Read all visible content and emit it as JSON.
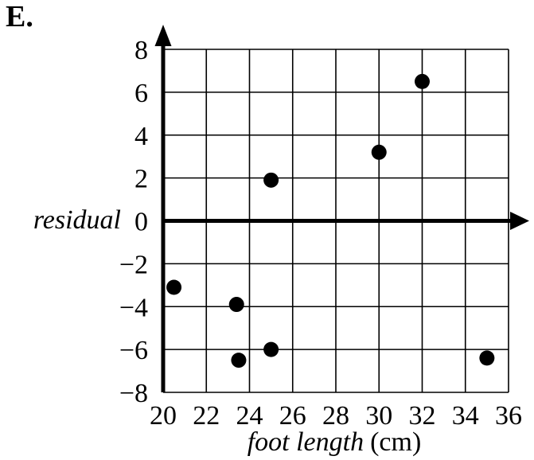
{
  "page": {
    "label": "E.",
    "background": "#ffffff",
    "ink": "#000000"
  },
  "chart_data": {
    "type": "scatter",
    "title": "",
    "ylabel": "residual",
    "xlabel": "foot length",
    "xlabel_unit": "(cm)",
    "xlim": [
      20,
      36
    ],
    "ylim": [
      -8,
      8
    ],
    "x_ticks": [
      20,
      22,
      24,
      26,
      28,
      30,
      32,
      34,
      36
    ],
    "y_ticks": [
      -8,
      -6,
      -4,
      -2,
      0,
      2,
      4,
      6,
      8
    ],
    "grid": true,
    "grid_step": 2,
    "legend": "none",
    "point_color": "#000000",
    "axis_color": "#000000",
    "points": [
      {
        "x": 20.5,
        "y": -3.1
      },
      {
        "x": 23.4,
        "y": -3.9
      },
      {
        "x": 23.5,
        "y": -6.5
      },
      {
        "x": 25,
        "y": -6
      },
      {
        "x": 25,
        "y": 1.9
      },
      {
        "x": 30,
        "y": 3.2
      },
      {
        "x": 32,
        "y": 6.5
      },
      {
        "x": 35,
        "y": -6.4
      }
    ]
  }
}
